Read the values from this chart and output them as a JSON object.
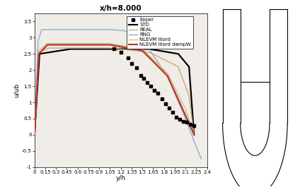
{
  "title": "x/h=8.000",
  "xlabel": "y/h",
  "ylabel": "u/ub",
  "xlim": [
    0,
    2.4
  ],
  "ylim": [
    -1,
    3.75
  ],
  "xticks": [
    0,
    0.15,
    0.3,
    0.45,
    0.6,
    0.75,
    0.9,
    1.05,
    1.2,
    1.35,
    1.5,
    1.65,
    1.8,
    1.95,
    2.1,
    2.25,
    2.4
  ],
  "yticks": [
    -1,
    -0.5,
    0,
    0.5,
    1,
    1.5,
    2,
    2.5,
    3,
    3.5
  ],
  "legend_labels": [
    "Exper",
    "STD",
    "REAL",
    "RNG",
    "NLEVM IIIord",
    "NLEVM IIIord dampW"
  ],
  "exper_x": [
    1.1,
    1.2,
    1.3,
    1.35,
    1.42,
    1.48,
    1.52,
    1.57,
    1.62,
    1.67,
    1.72,
    1.77,
    1.82,
    1.87,
    1.92,
    1.97,
    2.02,
    2.07,
    2.12,
    2.17,
    2.22
  ],
  "exper_y": [
    2.65,
    2.55,
    2.38,
    2.2,
    2.08,
    1.82,
    1.75,
    1.62,
    1.5,
    1.38,
    1.28,
    1.12,
    0.95,
    0.82,
    0.7,
    0.55,
    0.48,
    0.42,
    0.38,
    0.32,
    0.28
  ],
  "std_color": "#000000",
  "real_color": "#c8a878",
  "rng_color": "#8eb0c8",
  "nlevm_color": "#c8c870",
  "nlevmdw_color": "#c03030",
  "std_lw": 1.6,
  "real_lw": 1.0,
  "rng_lw": 1.0,
  "nlevm_lw": 1.0,
  "nlevmdw_lw": 1.6,
  "background_color": "#f0ece8"
}
